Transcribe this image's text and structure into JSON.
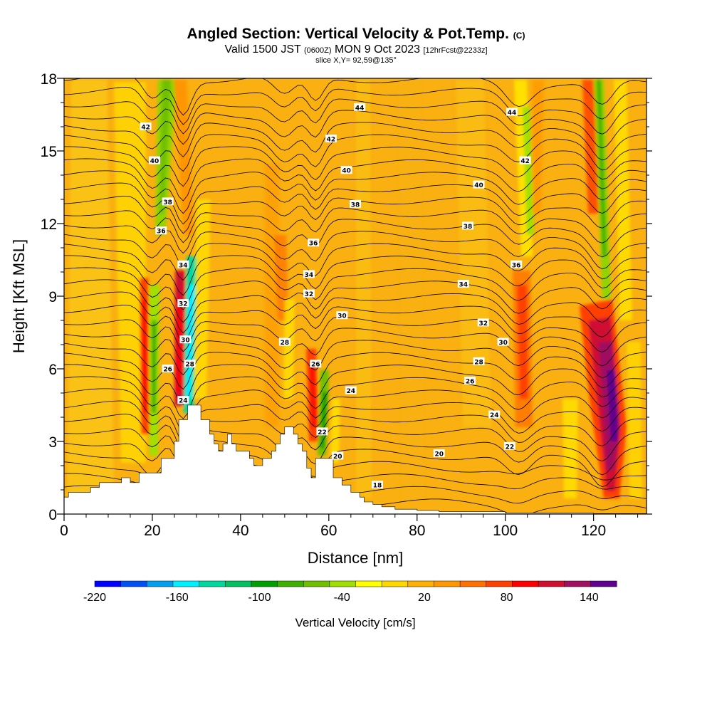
{
  "header": {
    "title": "Angled Section: Vertical Velocity & Pot.Temp.",
    "title_mark": "(C)",
    "valid_main": "Valid 1500 JST",
    "valid_utc": "(0600Z)",
    "valid_date": "MON 9 Oct 2023",
    "valid_fcst": "[12hrFcst@2233z]",
    "slice": "slice X,Y= 92,59@135°"
  },
  "colors": {
    "background_field": "#f9b010",
    "terrain": "#ffffff",
    "contour": "#000000"
  },
  "chart_data": {
    "type": "heatmap",
    "xlabel": "Distance [nm]",
    "ylabel": "Height [Kft MSL]",
    "xlim": [
      0,
      132
    ],
    "ylim": [
      0,
      18
    ],
    "x_ticks": [
      0,
      20,
      40,
      60,
      80,
      100,
      120
    ],
    "y_ticks": [
      0,
      3,
      6,
      9,
      12,
      15,
      18
    ],
    "colorbar": {
      "label": "Vertical Velocity [cm/s]",
      "tick_labels": [
        "-220",
        "-160",
        "-100",
        "-40",
        "20",
        "80",
        "140"
      ],
      "tick_values": [
        -220,
        -160,
        -100,
        -40,
        20,
        80,
        140
      ],
      "range": [
        -220,
        160
      ],
      "step": 20,
      "colors": [
        "#0000ff",
        "#0050f5",
        "#00a0f0",
        "#00f0ff",
        "#00d8a0",
        "#00c060",
        "#00a000",
        "#40b000",
        "#70c000",
        "#a0e000",
        "#ffff00",
        "#ffd800",
        "#ffb000",
        "#ff9800",
        "#ff7000",
        "#ff4000",
        "#ff0000",
        "#d01030",
        "#a01060",
        "#600090"
      ]
    },
    "terrain_profile": {
      "x": [
        0,
        1,
        1,
        6,
        6,
        8,
        8,
        13,
        13,
        15,
        15,
        17,
        17,
        22,
        22,
        25,
        25,
        26,
        26,
        28,
        28,
        31,
        31,
        33,
        33,
        34,
        34,
        35,
        35,
        36,
        36,
        37,
        37,
        38,
        38,
        39,
        39,
        42,
        42,
        43,
        43,
        45,
        45,
        47,
        47,
        48,
        48,
        49,
        49,
        50,
        50,
        52,
        52,
        53,
        53,
        54,
        54,
        55,
        55,
        56,
        56,
        57,
        57,
        58,
        58,
        61,
        61,
        63,
        63,
        65,
        65,
        67,
        67,
        68,
        68,
        70,
        70,
        72,
        72,
        75,
        75,
        80,
        80,
        85,
        85,
        100,
        100,
        120,
        120,
        132
      ],
      "height": [
        0.7,
        0.7,
        0.9,
        0.9,
        1.1,
        1.1,
        1.3,
        1.3,
        1.5,
        1.5,
        1.3,
        1.3,
        1.7,
        1.7,
        2.3,
        2.3,
        3.0,
        3.0,
        3.9,
        3.9,
        4.5,
        4.5,
        3.9,
        3.9,
        3.3,
        3.3,
        2.9,
        2.9,
        2.6,
        2.6,
        2.9,
        2.9,
        3.3,
        3.3,
        2.9,
        2.9,
        2.6,
        2.6,
        2.3,
        2.3,
        2.0,
        2.0,
        2.3,
        2.3,
        2.6,
        2.6,
        2.9,
        2.9,
        3.3,
        3.3,
        3.6,
        3.6,
        3.3,
        3.3,
        2.9,
        2.9,
        2.6,
        2.6,
        1.9,
        1.9,
        1.5,
        1.5,
        2.3,
        2.3,
        2.3,
        2.3,
        1.5,
        1.5,
        1.2,
        1.2,
        0.9,
        0.9,
        0.7,
        0.7,
        0.5,
        0.5,
        0.4,
        0.4,
        0.3,
        0.3,
        0.2,
        0.2,
        0.15,
        0.15,
        0.1,
        0.1,
        0.05,
        0.05,
        0.02,
        0.02
      ]
    },
    "theta_contour_labels": [
      {
        "text": "44",
        "x": 67,
        "y": 16.8
      },
      {
        "text": "44",
        "x": 101.5,
        "y": 16.6
      },
      {
        "text": "42",
        "x": 18.5,
        "y": 16.0
      },
      {
        "text": "42",
        "x": 60.5,
        "y": 15.5
      },
      {
        "text": "42",
        "x": 104.5,
        "y": 14.6
      },
      {
        "text": "40",
        "x": 20.5,
        "y": 14.6
      },
      {
        "text": "40",
        "x": 64,
        "y": 14.2
      },
      {
        "text": "40",
        "x": 94,
        "y": 13.6
      },
      {
        "text": "38",
        "x": 23.5,
        "y": 12.9
      },
      {
        "text": "38",
        "x": 66,
        "y": 12.8
      },
      {
        "text": "38",
        "x": 91.5,
        "y": 11.9
      },
      {
        "text": "36",
        "x": 22,
        "y": 11.7
      },
      {
        "text": "36",
        "x": 56.5,
        "y": 11.2
      },
      {
        "text": "36",
        "x": 102.5,
        "y": 10.3
      },
      {
        "text": "34",
        "x": 27,
        "y": 10.3
      },
      {
        "text": "34",
        "x": 55.5,
        "y": 9.9
      },
      {
        "text": "34",
        "x": 90.5,
        "y": 9.5
      },
      {
        "text": "32",
        "x": 27,
        "y": 8.7
      },
      {
        "text": "32",
        "x": 55.5,
        "y": 9.1
      },
      {
        "text": "32",
        "x": 95,
        "y": 7.9
      },
      {
        "text": "30",
        "x": 63,
        "y": 8.2
      },
      {
        "text": "30",
        "x": 27.5,
        "y": 7.2
      },
      {
        "text": "30",
        "x": 99.5,
        "y": 7.1
      },
      {
        "text": "28",
        "x": 50,
        "y": 7.1
      },
      {
        "text": "28",
        "x": 28.5,
        "y": 6.2
      },
      {
        "text": "28",
        "x": 94,
        "y": 6.3
      },
      {
        "text": "26",
        "x": 23.5,
        "y": 6.0
      },
      {
        "text": "26",
        "x": 57,
        "y": 6.2
      },
      {
        "text": "26",
        "x": 92,
        "y": 5.5
      },
      {
        "text": "24",
        "x": 27,
        "y": 4.7
      },
      {
        "text": "24",
        "x": 65,
        "y": 5.1
      },
      {
        "text": "24",
        "x": 97.5,
        "y": 4.1
      },
      {
        "text": "22",
        "x": 58.5,
        "y": 3.4
      },
      {
        "text": "22",
        "x": 101,
        "y": 2.8
      },
      {
        "text": "20",
        "x": 62,
        "y": 2.4
      },
      {
        "text": "20",
        "x": 85,
        "y": 2.5
      },
      {
        "text": "18",
        "x": 71,
        "y": 1.2
      }
    ]
  }
}
